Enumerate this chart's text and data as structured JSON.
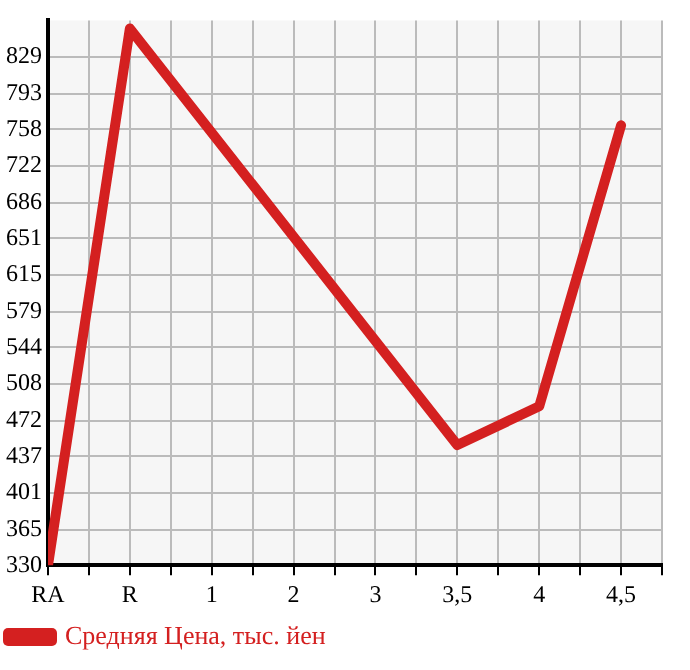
{
  "chart_data": {
    "type": "line",
    "categories": [
      "RA",
      "R",
      "1",
      "2",
      "3",
      "3,5",
      "4",
      "4,5"
    ],
    "series": [
      {
        "name": "Средняя Цена, тыс. йен",
        "color": "#d42020",
        "values": [
          330,
          857,
          null,
          null,
          null,
          448,
          486,
          762
        ]
      }
    ],
    "ylim": [
      330,
      865
    ],
    "yticks": [
      330,
      365,
      401,
      437,
      472,
      508,
      544,
      579,
      615,
      651,
      686,
      722,
      758,
      793,
      829
    ],
    "grid": true,
    "legend": "bottom left",
    "marker": "none",
    "line_style": "solid"
  }
}
